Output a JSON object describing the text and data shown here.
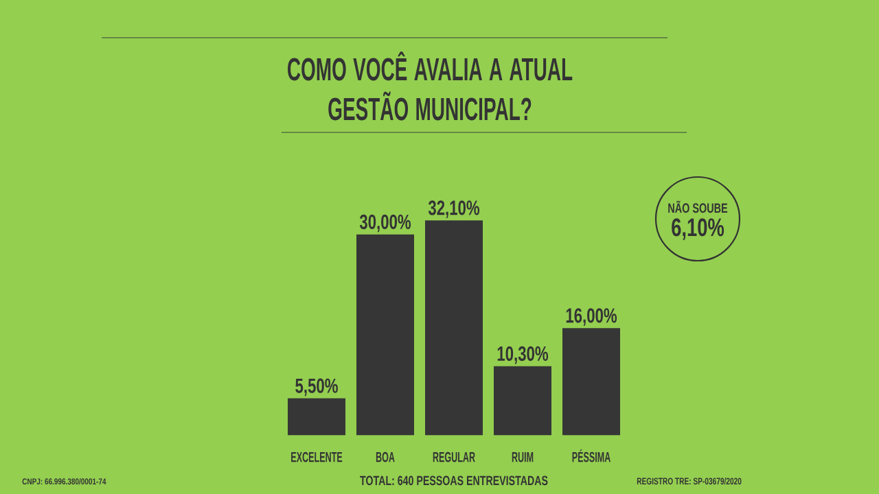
{
  "chart_data": {
    "type": "bar",
    "title": "COMO VOCÊ AVALIA A ATUAL GESTÃO MUNICIPAL?",
    "categories": [
      "EXCELENTE",
      "BOA",
      "REGULAR",
      "RUIM",
      "PÉSSIMA"
    ],
    "values": [
      5.5,
      30,
      32.1,
      10.3,
      16
    ],
    "value_labels": [
      "5,50%",
      "30,00%",
      "32,10%",
      "10,30%",
      "16,00%"
    ],
    "color": "#363636",
    "annotations": [
      "NÃO SOUBE",
      "6,10%",
      "CNPJ: 66.996.380/0001-74",
      "TOTAL: 640 PESSOAS ENTREVISTADAS",
      "REGISTRO TRE: SP-03679/2020"
    ]
  }
}
